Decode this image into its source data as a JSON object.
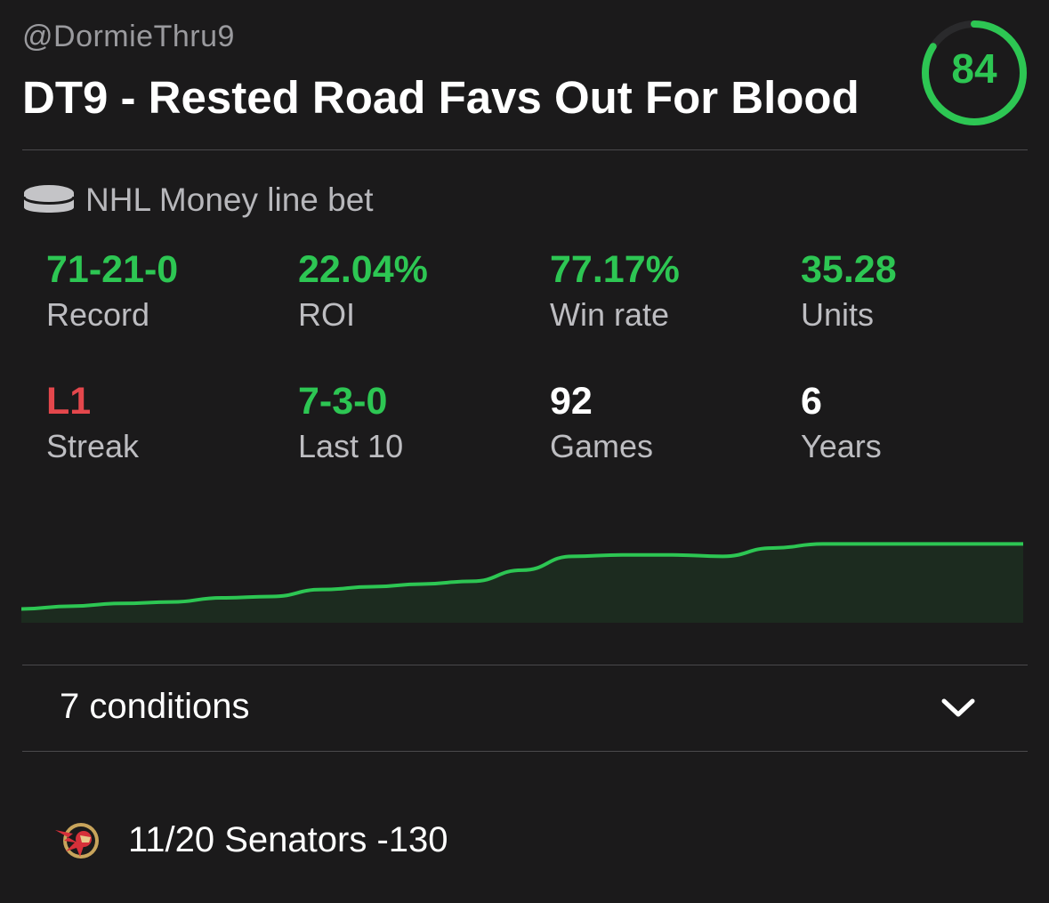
{
  "header": {
    "handle": "@DormieThru9",
    "title": "DT9 - Rested Road Favs Out For Blood",
    "score": "84",
    "score_fraction": 0.84,
    "score_color": "#2dc653"
  },
  "bet_type": {
    "icon": "hockey-puck-icon",
    "label": "NHL Money line bet"
  },
  "stats": [
    {
      "value": "71-21-0",
      "label": "Record",
      "color": "#2dc653"
    },
    {
      "value": "22.04%",
      "label": "ROI",
      "color": "#2dc653"
    },
    {
      "value": "77.17%",
      "label": "Win rate",
      "color": "#2dc653"
    },
    {
      "value": "35.28",
      "label": "Units",
      "color": "#2dc653"
    },
    {
      "value": "L1",
      "label": "Streak",
      "color": "#e4474c"
    },
    {
      "value": "7-3-0",
      "label": "Last 10",
      "color": "#2dc653"
    },
    {
      "value": "92",
      "label": "Games",
      "color": "#ffffff"
    },
    {
      "value": "6",
      "label": "Years",
      "color": "#ffffff"
    }
  ],
  "chart_data": {
    "type": "area",
    "x": [
      0,
      1,
      2,
      3,
      4,
      5,
      6,
      7,
      8,
      9,
      10,
      11,
      12,
      13,
      14,
      15,
      16,
      17,
      18,
      19,
      20
    ],
    "values": [
      0,
      1,
      2,
      2.5,
      4,
      4.5,
      7,
      8,
      9,
      10,
      14,
      19,
      19.5,
      19.5,
      19,
      22,
      23.5,
      23.5,
      23.5,
      23.5,
      23.5
    ],
    "ylim": [
      -5,
      40
    ],
    "line_color": "#2dc653",
    "fill_color": "#1c2b1f",
    "grid": false,
    "legend": "none"
  },
  "conditions": {
    "label": "7 conditions",
    "icon": "chevron-down-icon"
  },
  "pick": {
    "team_icon": "senators-logo",
    "text": "11/20 Senators -130"
  }
}
